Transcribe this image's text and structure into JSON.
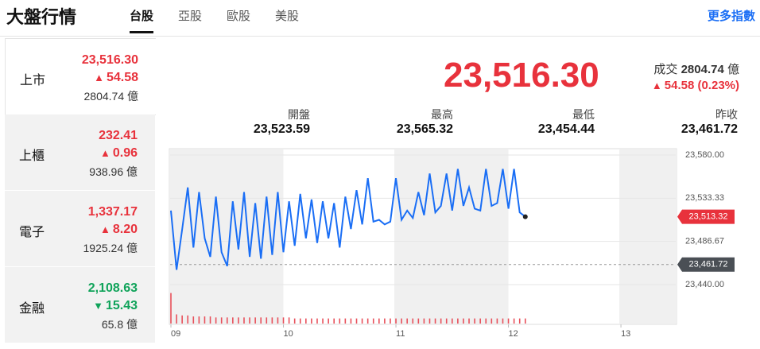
{
  "header": {
    "title": "大盤行情",
    "tabs": [
      "台股",
      "亞股",
      "歐股",
      "美股"
    ],
    "active_tab": 0,
    "more": "更多指數"
  },
  "sidebar": [
    {
      "name": "上市",
      "price": "23,516.30",
      "change": "54.58",
      "direction": "up",
      "volume": "2804.74 億",
      "selected": true
    },
    {
      "name": "上櫃",
      "price": "232.41",
      "change": "0.96",
      "direction": "up",
      "volume": "938.96 億",
      "selected": false
    },
    {
      "name": "電子",
      "price": "1,337.17",
      "change": "8.20",
      "direction": "up",
      "volume": "1925.24 億",
      "selected": false
    },
    {
      "name": "金融",
      "price": "2,108.63",
      "change": "15.43",
      "direction": "down",
      "volume": "65.8 億",
      "selected": false
    }
  ],
  "summary": {
    "price": "23,516.30",
    "volume_label": "成交",
    "volume": "2804.74",
    "volume_unit": "億",
    "change": "54.58 (0.23%)",
    "direction": "up",
    "stats": [
      {
        "label": "開盤",
        "value": "23,523.59"
      },
      {
        "label": "最高",
        "value": "23,565.32"
      },
      {
        "label": "最低",
        "value": "23,454.44"
      },
      {
        "label": "昨收",
        "value": "23,461.72"
      }
    ]
  },
  "chart": {
    "type": "line",
    "color": "#1a6ef5",
    "x": [
      9.0,
      9.05,
      9.1,
      9.15,
      9.2,
      9.25,
      9.3,
      9.35,
      9.4,
      9.45,
      9.5,
      9.55,
      9.6,
      9.65,
      9.7,
      9.75,
      9.8,
      9.85,
      9.9,
      9.95,
      10.0,
      10.05,
      10.1,
      10.15,
      10.2,
      10.25,
      10.3,
      10.35,
      10.4,
      10.45,
      10.5,
      10.55,
      10.6,
      10.65,
      10.7,
      10.75,
      10.8,
      10.85,
      10.9,
      10.95,
      11.0,
      11.05,
      11.1,
      11.15,
      11.2,
      11.25,
      11.3,
      11.35,
      11.4,
      11.45,
      11.5,
      11.55,
      11.6,
      11.65,
      11.7,
      11.75,
      11.8,
      11.85,
      11.9,
      11.95,
      12.0,
      12.05,
      12.1,
      12.15
    ],
    "values": [
      23520,
      23456,
      23500,
      23545,
      23480,
      23540,
      23490,
      23470,
      23535,
      23475,
      23460,
      23530,
      23478,
      23540,
      23470,
      23528,
      23468,
      23535,
      23472,
      23540,
      23475,
      23530,
      23482,
      23538,
      23490,
      23532,
      23485,
      23530,
      23490,
      23528,
      23480,
      23535,
      23500,
      23542,
      23505,
      23555,
      23508,
      23510,
      23505,
      23508,
      23555,
      23510,
      23520,
      23512,
      23540,
      23515,
      23560,
      23518,
      23525,
      23560,
      23520,
      23565,
      23525,
      23545,
      23522,
      23520,
      23565,
      23525,
      23528,
      23565,
      23522,
      23565,
      23518,
      23513.32
    ],
    "volume": {
      "color": "#e8505b",
      "ylim": [
        0,
        32
      ],
      "values": [
        30,
        9,
        8,
        8,
        7,
        7,
        7,
        7,
        6,
        6,
        6,
        6,
        6,
        6,
        6,
        6,
        6,
        6,
        6,
        6,
        6,
        6,
        5,
        5,
        5,
        5,
        5,
        5,
        5,
        5,
        5,
        5,
        5,
        5,
        5,
        5,
        5,
        5,
        5,
        5,
        5,
        5,
        5,
        5,
        5,
        5,
        5,
        5,
        5,
        5,
        5,
        5,
        5,
        5,
        5,
        5,
        5,
        5,
        5,
        5,
        5,
        5,
        5,
        5
      ]
    },
    "xlim": [
      9,
      13.48
    ],
    "xticks": [
      {
        "value": 9,
        "label": "09"
      },
      {
        "value": 10,
        "label": "10"
      },
      {
        "value": 11,
        "label": "11"
      },
      {
        "value": 12,
        "label": "12"
      },
      {
        "value": 13,
        "label": "13"
      }
    ],
    "ylim": [
      23440,
      23580
    ],
    "yticks": [
      {
        "value": 23440,
        "label": "23,440.00"
      },
      {
        "value": 23486.67,
        "label": "23,486.67"
      },
      {
        "value": 23533.33,
        "label": "23,533.33"
      },
      {
        "value": 23580,
        "label": "23,580.00"
      }
    ],
    "markers": [
      {
        "value": 23513.32,
        "label": "23,513.32",
        "color": "#e8323c"
      },
      {
        "value": 23461.72,
        "label": "23,461.72",
        "color": "#4a4f55"
      }
    ]
  }
}
